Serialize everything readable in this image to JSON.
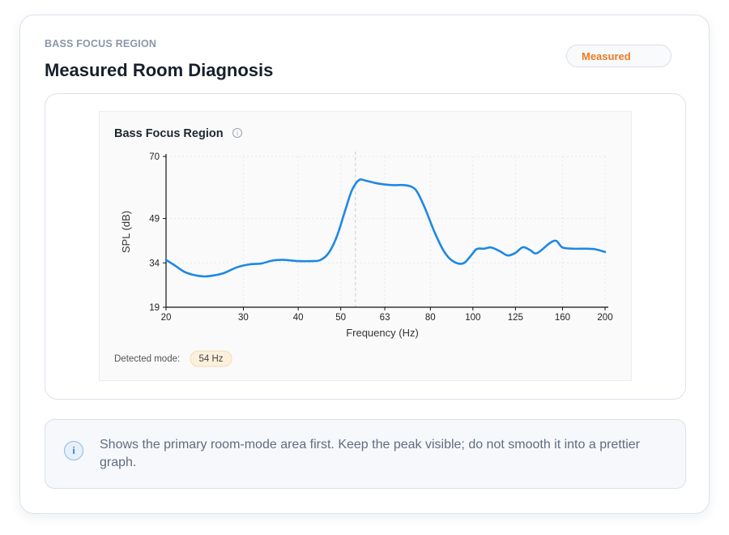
{
  "header": {
    "kicker": "BASS FOCUS REGION",
    "title": "Measured Room Diagnosis",
    "badge": "Measured"
  },
  "note": {
    "icon": "info-icon",
    "icon_glyph": "i",
    "text": "Shows the primary room-mode area first. Keep the peak visible; do not smooth it into a prettier graph."
  },
  "chart_data": {
    "type": "line",
    "title": "Bass Focus Region",
    "title_icon": "info-icon",
    "xlabel": "Frequency (Hz)",
    "ylabel": "SPL (dB)",
    "x_scale": "log",
    "xlim": [
      20,
      200
    ],
    "ylim": [
      19,
      70
    ],
    "x_ticks": [
      20,
      30,
      40,
      50,
      63,
      80,
      100,
      125,
      160,
      200
    ],
    "y_ticks": [
      19,
      34,
      49,
      70
    ],
    "grid": true,
    "mode_marker_x": 54,
    "detected_mode_label": "Detected mode:",
    "detected_mode_value": "54 Hz",
    "line_color": "#1e88e5",
    "series": [
      {
        "x": [
          20,
          21,
          22,
          23,
          24,
          25,
          27,
          29,
          31,
          33,
          35,
          37,
          40,
          43,
          45,
          47,
          49,
          51,
          53,
          55,
          57,
          60,
          63,
          66,
          70,
          73,
          75,
          78,
          82,
          86,
          90,
          95,
          99,
          102,
          106,
          110,
          115,
          120,
          125,
          130,
          135,
          140,
          150,
          155,
          160,
          170,
          180,
          190,
          200
        ],
        "y": [
          35,
          33,
          31,
          30,
          29.5,
          29.5,
          30.5,
          32.5,
          33.5,
          33.8,
          34.8,
          35,
          34.6,
          34.6,
          35,
          37.5,
          43,
          51,
          58.5,
          62,
          61.8,
          61,
          60.5,
          60.3,
          60.3,
          59.5,
          57.5,
          52,
          44,
          37.8,
          34.6,
          33.8,
          36.5,
          38.7,
          38.8,
          39.2,
          38,
          36.5,
          37.4,
          39.3,
          38.3,
          37.3,
          40.8,
          41.4,
          39.2,
          38.8,
          38.8,
          38.6,
          37.7
        ]
      }
    ]
  }
}
